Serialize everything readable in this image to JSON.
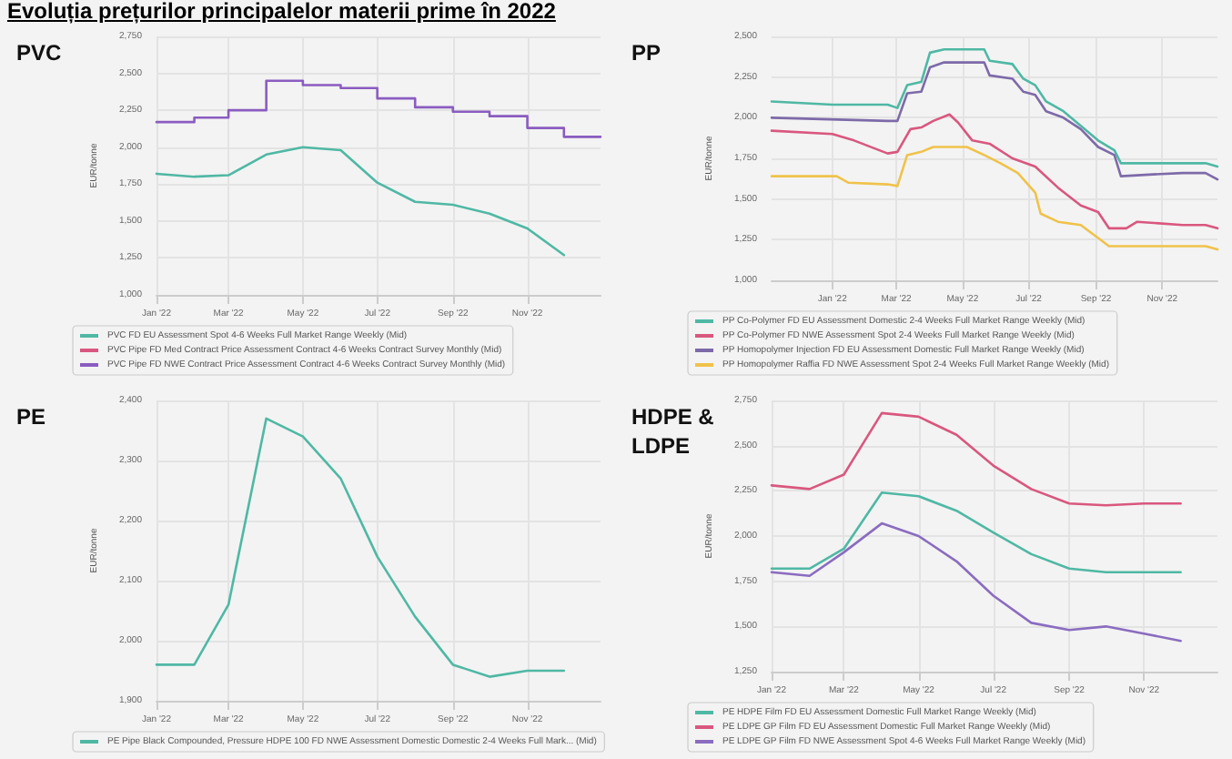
{
  "chart_data": [
    {
      "type": "line",
      "title": "PVC",
      "ylabel": "EUR/tonne",
      "annotations": [
        "Evoluția prețurilor principalelor materii prime în 2022"
      ],
      "xlim": [
        "2022-01-01",
        "2022-12-31"
      ],
      "xticks": [
        {
          "value": "2022-01-01",
          "label": "Jan '22"
        },
        {
          "value": "2022-03-01",
          "label": "Mar '22"
        },
        {
          "value": "2022-05-01",
          "label": "May '22"
        },
        {
          "value": "2022-07-01",
          "label": "Jul '22"
        },
        {
          "value": "2022-09-01",
          "label": "Sep '22"
        },
        {
          "value": "2022-11-01",
          "label": "Nov '22"
        }
      ],
      "ylim": [
        1000,
        2750
      ],
      "yticks": [
        {
          "value": 1000,
          "label": "1,000"
        },
        {
          "value": 1250,
          "label": "1,250"
        },
        {
          "value": 1500,
          "label": "1,500"
        },
        {
          "value": 1750,
          "label": "1,750"
        },
        {
          "value": 2000,
          "label": "2,000"
        },
        {
          "value": 2250,
          "label": "2,250"
        },
        {
          "value": 2500,
          "label": "2,500"
        },
        {
          "value": 2750,
          "label": "2,750"
        }
      ],
      "grid": true,
      "legend": "bottom",
      "marker": "none",
      "series": [
        {
          "name": "PVC FD EU Assessment Spot 4-6 Weeks Full Market Range Weekly (Mid)",
          "color": "#4fb8a4",
          "x": [
            "2022-01-01",
            "2022-02-01",
            "2022-03-01",
            "2022-04-01",
            "2022-05-01",
            "2022-06-01",
            "2022-07-01",
            "2022-08-01",
            "2022-09-01",
            "2022-10-01",
            "2022-11-01",
            "2022-12-01"
          ],
          "values": [
            1820,
            1800,
            1810,
            1950,
            2000,
            1980,
            1760,
            1630,
            1610,
            1550,
            1450,
            1270
          ]
        },
        {
          "name": "PVC Pipe FD Med Contract Price Assessment Contract 4-6 Weeks Contract Survey Monthly (Mid)",
          "color": "#d9577f",
          "type": "step"
        },
        {
          "name": "PVC Pipe FD NWE Contract Price Assessment Contract 4-6 Weeks Contract Survey Monthly (Mid)",
          "color": "#8a5cc0",
          "type": "step",
          "x": [
            "2022-01-01",
            "2022-02-01",
            "2022-03-01",
            "2022-04-01",
            "2022-05-01",
            "2022-06-01",
            "2022-07-01",
            "2022-08-01",
            "2022-09-01",
            "2022-10-01",
            "2022-11-01",
            "2022-12-01",
            "2022-12-31"
          ],
          "values": [
            2170,
            2200,
            2250,
            2450,
            2420,
            2400,
            2330,
            2270,
            2240,
            2210,
            2130,
            2070,
            2070
          ]
        }
      ]
    },
    {
      "type": "line",
      "title": "PP",
      "ylabel": "EUR/tonne",
      "xlim": [
        "2021-11-06",
        "2022-12-22"
      ],
      "xticks": [
        {
          "value": "2022-01-01",
          "label": "Jan '22"
        },
        {
          "value": "2022-03-01",
          "label": "Mar '22"
        },
        {
          "value": "2022-05-01",
          "label": "May '22"
        },
        {
          "value": "2022-07-01",
          "label": "Jul '22"
        },
        {
          "value": "2022-09-01",
          "label": "Sep '22"
        },
        {
          "value": "2022-11-01",
          "label": "Nov '22"
        }
      ],
      "ylim": [
        1000,
        2500
      ],
      "yticks": [
        {
          "value": 1000,
          "label": "1,000"
        },
        {
          "value": 1250,
          "label": "1,250"
        },
        {
          "value": 1500,
          "label": "1,500"
        },
        {
          "value": 1750,
          "label": "1,750"
        },
        {
          "value": 2000,
          "label": "2,000"
        },
        {
          "value": 2250,
          "label": "2,250"
        },
        {
          "value": 2500,
          "label": "2,500"
        }
      ],
      "grid": true,
      "legend": "bottom",
      "marker": "none",
      "series": [
        {
          "name": "PP Co-Polymer FD EU Assessment Domestic 2-4 Weeks Full Market Range Weekly (Mid)",
          "color": "#4fb8a4",
          "x": [
            "2021-11-06",
            "2022-01-01",
            "2022-02-21",
            "2022-03-02",
            "2022-03-11",
            "2022-03-24",
            "2022-04-01",
            "2022-04-14",
            "2022-05-01",
            "2022-05-21",
            "2022-05-26",
            "2022-06-16",
            "2022-06-26",
            "2022-07-07",
            "2022-07-17",
            "2022-08-02",
            "2022-08-18",
            "2022-09-03",
            "2022-09-18",
            "2022-09-24",
            "2022-10-20",
            "2022-11-20",
            "2022-12-11",
            "2022-12-22"
          ],
          "values": [
            2100,
            2080,
            2080,
            2060,
            2200,
            2220,
            2400,
            2420,
            2420,
            2420,
            2350,
            2330,
            2240,
            2200,
            2100,
            2040,
            1950,
            1860,
            1800,
            1720,
            1720,
            1720,
            1720,
            1700
          ]
        },
        {
          "name": "PP Co-Polymer FD NWE Assessment Spot 2-4 Weeks Full Market Range Weekly (Mid)",
          "color": "#d9577f",
          "x": [
            "2021-11-06",
            "2022-01-01",
            "2022-01-21",
            "2022-02-21",
            "2022-03-02",
            "2022-03-14",
            "2022-03-24",
            "2022-04-04",
            "2022-04-19",
            "2022-04-27",
            "2022-05-10",
            "2022-05-26",
            "2022-06-16",
            "2022-07-07",
            "2022-07-28",
            "2022-08-18",
            "2022-09-03",
            "2022-09-13",
            "2022-09-29",
            "2022-10-09",
            "2022-11-20",
            "2022-12-11",
            "2022-12-22"
          ],
          "values": [
            1920,
            1900,
            1860,
            1780,
            1790,
            1930,
            1940,
            1980,
            2020,
            1970,
            1860,
            1840,
            1750,
            1700,
            1570,
            1460,
            1420,
            1320,
            1320,
            1360,
            1340,
            1340,
            1320
          ]
        },
        {
          "name": "PP Homopolymer Injection FD EU Assessment Domestic Full Market Range Weekly (Mid)",
          "color": "#7d6aa8",
          "x": [
            "2021-11-06",
            "2022-02-21",
            "2022-03-02",
            "2022-03-11",
            "2022-03-24",
            "2022-04-01",
            "2022-04-14",
            "2022-05-21",
            "2022-05-26",
            "2022-06-16",
            "2022-06-26",
            "2022-07-07",
            "2022-07-17",
            "2022-08-02",
            "2022-08-18",
            "2022-09-03",
            "2022-09-18",
            "2022-09-24",
            "2022-10-20",
            "2022-11-20",
            "2022-12-11",
            "2022-12-22"
          ],
          "values": [
            2000,
            1980,
            1980,
            2150,
            2160,
            2310,
            2340,
            2340,
            2260,
            2240,
            2160,
            2140,
            2040,
            2000,
            1930,
            1820,
            1770,
            1640,
            1650,
            1660,
            1660,
            1620
          ]
        },
        {
          "name": "PP Homopolymer Raffia FD NWE Assessment Spot 2-4 Weeks Full Market Range Weekly (Mid)",
          "color": "#f0c24a",
          "x": [
            "2021-11-06",
            "2022-01-05",
            "2022-01-16",
            "2022-02-21",
            "2022-03-02",
            "2022-03-11",
            "2022-03-24",
            "2022-04-04",
            "2022-04-14",
            "2022-05-05",
            "2022-05-21",
            "2022-06-05",
            "2022-06-21",
            "2022-07-07",
            "2022-07-12",
            "2022-07-28",
            "2022-08-18",
            "2022-09-03",
            "2022-09-13",
            "2022-11-20",
            "2022-12-11",
            "2022-12-22"
          ],
          "values": [
            1640,
            1640,
            1600,
            1590,
            1580,
            1770,
            1790,
            1820,
            1820,
            1820,
            1770,
            1720,
            1660,
            1540,
            1410,
            1360,
            1340,
            1260,
            1210,
            1210,
            1210,
            1190
          ]
        }
      ]
    },
    {
      "type": "line",
      "title": "PE",
      "ylabel": "EUR/tonne",
      "xlim": [
        "2022-01-01",
        "2022-12-31"
      ],
      "xticks": [
        {
          "value": "2022-01-01",
          "label": "Jan '22"
        },
        {
          "value": "2022-03-01",
          "label": "Mar '22"
        },
        {
          "value": "2022-05-01",
          "label": "May '22"
        },
        {
          "value": "2022-07-01",
          "label": "Jul '22"
        },
        {
          "value": "2022-09-01",
          "label": "Sep '22"
        },
        {
          "value": "2022-11-01",
          "label": "Nov '22"
        }
      ],
      "ylim": [
        1900,
        2400
      ],
      "yticks": [
        {
          "value": 1900,
          "label": "1,900"
        },
        {
          "value": 2000,
          "label": "2,000"
        },
        {
          "value": 2100,
          "label": "2,100"
        },
        {
          "value": 2200,
          "label": "2,200"
        },
        {
          "value": 2300,
          "label": "2,300"
        },
        {
          "value": 2400,
          "label": "2,400"
        }
      ],
      "grid": true,
      "legend": "bottom",
      "marker": "none",
      "series": [
        {
          "name": "PE Pipe Black Compounded, Pressure HDPE 100 FD NWE Assessment Domestic Domestic 2-4 Weeks Full Mark... (Mid)",
          "color": "#4fb8a4",
          "x": [
            "2022-01-01",
            "2022-02-01",
            "2022-03-01",
            "2022-04-01",
            "2022-05-01",
            "2022-06-01",
            "2022-07-01",
            "2022-08-01",
            "2022-09-01",
            "2022-10-01",
            "2022-11-01",
            "2022-12-01"
          ],
          "values": [
            1960,
            1960,
            2060,
            2370,
            2340,
            2270,
            2140,
            2040,
            1960,
            1940,
            1950,
            1950
          ]
        }
      ]
    },
    {
      "type": "line",
      "title": "HDPE & LDPE",
      "ylabel": "EUR/tonne",
      "xlim": [
        "2022-01-01",
        "2022-12-31"
      ],
      "xticks": [
        {
          "value": "2022-01-01",
          "label": "Jan '22"
        },
        {
          "value": "2022-03-01",
          "label": "Mar '22"
        },
        {
          "value": "2022-05-01",
          "label": "May '22"
        },
        {
          "value": "2022-07-01",
          "label": "Jul '22"
        },
        {
          "value": "2022-09-01",
          "label": "Sep '22"
        },
        {
          "value": "2022-11-01",
          "label": "Nov '22"
        }
      ],
      "ylim": [
        1250,
        2750
      ],
      "yticks": [
        {
          "value": 1250,
          "label": "1,250"
        },
        {
          "value": 1500,
          "label": "1,500"
        },
        {
          "value": 1750,
          "label": "1,750"
        },
        {
          "value": 2000,
          "label": "2,000"
        },
        {
          "value": 2250,
          "label": "2,250"
        },
        {
          "value": 2500,
          "label": "2,500"
        },
        {
          "value": 2750,
          "label": "2,750"
        }
      ],
      "grid": true,
      "legend": "bottom",
      "marker": "none",
      "series": [
        {
          "name": "PE HDPE Film FD EU Assessment Domestic Full Market Range Weekly (Mid)",
          "color": "#4fb8a4",
          "x": [
            "2022-01-01",
            "2022-02-01",
            "2022-03-01",
            "2022-04-01",
            "2022-05-01",
            "2022-06-01",
            "2022-07-01",
            "2022-08-01",
            "2022-09-01",
            "2022-10-01",
            "2022-11-01",
            "2022-12-01"
          ],
          "values": [
            1820,
            1820,
            1930,
            2240,
            2220,
            2140,
            2020,
            1900,
            1820,
            1800,
            1800,
            1800
          ]
        },
        {
          "name": "PE LDPE GP Film FD EU Assessment Domestic Full Market Range Weekly (Mid)",
          "color": "#d9577f",
          "x": [
            "2022-01-01",
            "2022-02-01",
            "2022-03-01",
            "2022-04-01",
            "2022-05-01",
            "2022-06-01",
            "2022-07-01",
            "2022-08-01",
            "2022-09-01",
            "2022-10-01",
            "2022-11-01",
            "2022-12-01"
          ],
          "values": [
            2280,
            2260,
            2340,
            2680,
            2660,
            2560,
            2390,
            2260,
            2180,
            2170,
            2180,
            2180
          ]
        },
        {
          "name": "PE LDPE GP Film FD NWE Assessment Spot 4-6 Weeks Full Market Range Weekly (Mid)",
          "color": "#8a6cc0",
          "x": [
            "2022-01-01",
            "2022-02-01",
            "2022-03-01",
            "2022-04-01",
            "2022-05-01",
            "2022-06-01",
            "2022-07-01",
            "2022-08-01",
            "2022-09-01",
            "2022-10-01",
            "2022-11-01",
            "2022-12-01"
          ],
          "values": [
            1800,
            1780,
            1910,
            2070,
            2000,
            1860,
            1670,
            1520,
            1480,
            1500,
            1460,
            1420
          ]
        }
      ]
    }
  ]
}
